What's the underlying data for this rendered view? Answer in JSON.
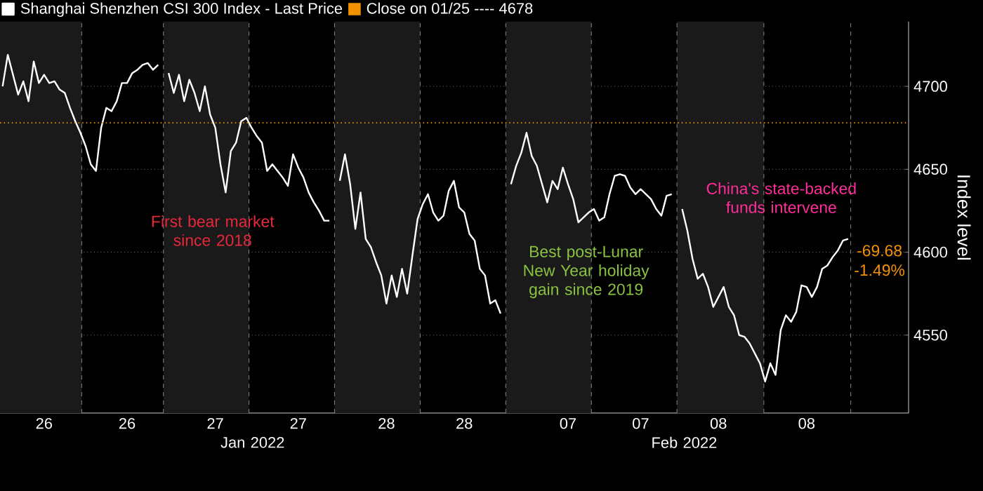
{
  "chart_data": {
    "type": "line",
    "ylabel": "Index level",
    "categories": [
      null,
      null,
      null,
      null,
      null,
      null,
      null,
      null,
      "26",
      null,
      null,
      null,
      null,
      null,
      null,
      null,
      null,
      null,
      null,
      null,
      null,
      null,
      null,
      null,
      "26",
      null,
      null,
      null,
      null,
      null,
      null,
      null,
      null,
      null,
      null,
      null,
      null,
      null,
      null,
      null,
      null,
      "27",
      null,
      null,
      null,
      null,
      null,
      null,
      null,
      null,
      null,
      null,
      null,
      null,
      null,
      null,
      null,
      "27",
      null,
      null,
      null,
      null,
      null,
      null,
      null,
      null,
      null,
      null,
      null,
      null,
      null,
      null,
      null,
      null,
      "28",
      null,
      null,
      null,
      null,
      null,
      null,
      null,
      null,
      null,
      null,
      null,
      null,
      null,
      null,
      "28",
      null,
      null,
      null,
      null,
      null,
      null,
      null,
      null,
      null,
      null,
      null,
      null,
      null,
      null,
      null,
      null,
      null,
      null,
      null,
      "07",
      null,
      null,
      null,
      null,
      null,
      null,
      null,
      null,
      null,
      null,
      null,
      null,
      null,
      "07",
      null,
      null,
      null,
      null,
      null,
      null,
      null,
      null,
      null,
      null,
      null,
      null,
      null,
      null,
      "08",
      null,
      null,
      null,
      null,
      null,
      null,
      null,
      null,
      null,
      null,
      null,
      null,
      null,
      null,
      null,
      null,
      "08",
      null,
      null,
      null,
      null,
      null,
      null,
      null,
      null
    ],
    "ylim": [
      4503,
      4739
    ],
    "yticks": [
      4550,
      4600,
      4650,
      4700
    ],
    "grid": "y",
    "legend": "top left",
    "marker": "none",
    "line_style": "solid",
    "series": [
      {
        "name": "Shanghai Shenzhen CSI 300 Index - Last Price",
        "color": "#ffffff",
        "values": [
          4700,
          4719,
          4707,
          4695,
          4703,
          4691,
          4715,
          4702,
          4707,
          4702,
          4703,
          4698,
          4696,
          4687,
          4679,
          4672,
          4664,
          4653,
          4649,
          4675,
          4687,
          4685,
          4691,
          4702,
          4702,
          4708,
          4710,
          4713,
          4714,
          4710,
          4713,
          null,
          4708,
          4696,
          4707,
          4691,
          4704,
          4696,
          4685,
          4700,
          4683,
          4675,
          4653,
          4636,
          4661,
          4666,
          4679,
          4681,
          4675,
          4670,
          4666,
          4649,
          4653,
          4649,
          4645,
          4640,
          4659,
          4651,
          4645,
          4636,
          4630,
          4625,
          4619,
          4619,
          null,
          4643,
          4659,
          4641,
          4614,
          4636,
          4608,
          4603,
          4594,
          4586,
          4569,
          4586,
          4573,
          4590,
          4575,
          4598,
          4620,
          4629,
          4635,
          4624,
          4619,
          4622,
          4637,
          4643,
          4627,
          4624,
          4611,
          4607,
          4590,
          4586,
          4569,
          4571,
          4563,
          null,
          4641,
          4652,
          4660,
          4672,
          4658,
          4652,
          4641,
          4630,
          4643,
          4638,
          4651,
          4641,
          4632,
          4618,
          4621,
          4624,
          4626,
          4619,
          4621,
          4635,
          4646,
          4647,
          4646,
          4639,
          4635,
          4638,
          4635,
          4632,
          4626,
          4622,
          4634,
          4635,
          null,
          4626,
          4613,
          4596,
          4584,
          4587,
          4579,
          4567,
          4573,
          4579,
          4567,
          4562,
          4550,
          4549,
          4545,
          4539,
          4533,
          4522,
          4533,
          4526,
          4553,
          4562,
          4558,
          4564,
          4580,
          4579,
          4573,
          4579,
          4590,
          4592,
          4597,
          4601,
          4607,
          4608
        ]
      }
    ],
    "ref_lines": [
      {
        "axis": "y",
        "value": 4678,
        "label": "Close on 01/25 ---- 4678",
        "color": "#f39200",
        "line_style": "dotted"
      }
    ],
    "annotations": [
      "Jan 2022",
      "Feb 2022",
      "First bear market since 2018",
      "Best post-Lunar New Year holiday gain since 2019",
      "China's state-backed funds intervene",
      "-69.68",
      "-1.49%"
    ]
  }
}
